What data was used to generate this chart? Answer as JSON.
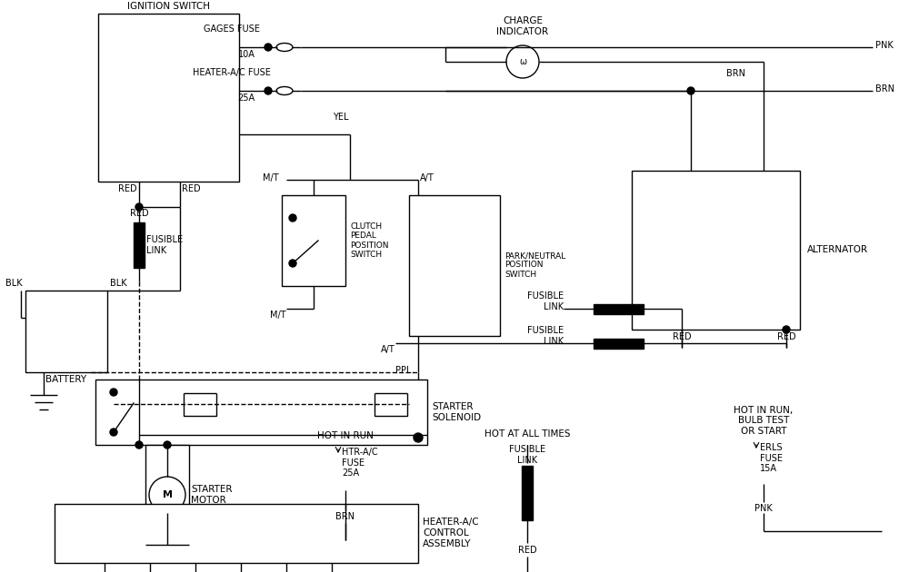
{
  "bg": "#ffffff",
  "lc": "#000000",
  "lw": 1.0,
  "fig_w": 10.0,
  "fig_h": 6.3,
  "labels": {
    "ignition_switch": "IGNITION SWITCH",
    "gages_fuse": "GAGES FUSE\n10A",
    "heater_ac_fuse": "HEATER-A/C FUSE\n25A",
    "charge_indicator": "CHARGE\nINDICATOR",
    "alternator": "ALTERNATOR",
    "brn": "BRN",
    "pnk": "PNK",
    "yel": "YEL",
    "red": "RED",
    "blk": "BLK",
    "ppl": "PPL",
    "clutch": "CLUTCH\nPEDAL\nPOSITION\nSWITCH",
    "park_neutral": "PARK/NEUTRAL\nPOSITION\nSWITCH",
    "fusible_link": "FUSIBLE\nLINK",
    "battery": "BATTERY",
    "starter_solenoid": "STARTER\nSOLENOID",
    "starter_motor": "STARTER\nMOTOR",
    "hot_in_run": "HOT IN RUN",
    "htr_ac_fuse": "HTR-A/C\nFUSE\n25A",
    "brn2": "BRN",
    "heater_ac_ctrl": "HEATER-A/C\nCONTROL\nASSEMBLY",
    "hot_at_all_times": "HOT AT ALL TIMES",
    "hot_run_bulb": "HOT IN RUN,\nBULB TEST\nOR START",
    "erls_fuse": "ERLS\nFUSE\n15A",
    "mt": "M/T",
    "at": "A/T"
  }
}
